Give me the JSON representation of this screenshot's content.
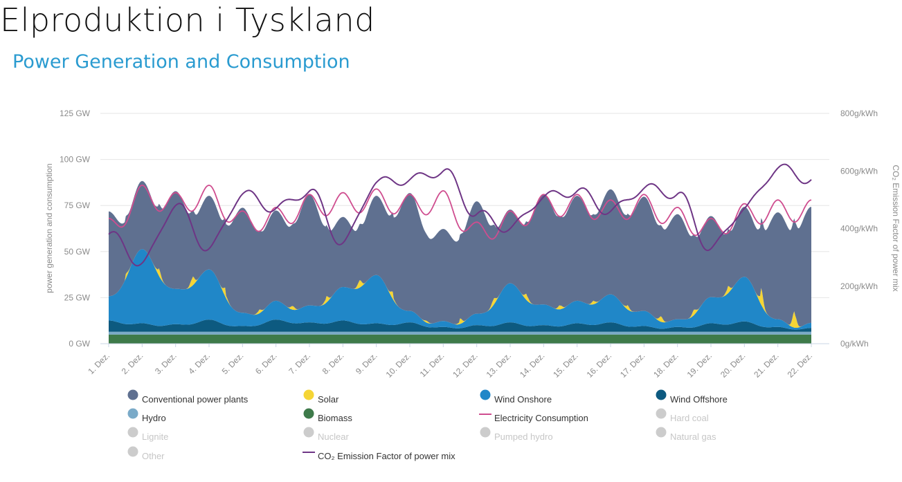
{
  "title": "Elproduktion i Tyskland",
  "subtitle": "Power Generation and Consumption",
  "chart_data": {
    "type": "area",
    "y_left": {
      "label": "power generation and consumption",
      "ticks": [
        "0 GW",
        "25 GW",
        "50 GW",
        "75 GW",
        "100 GW",
        "125 GW"
      ],
      "range": [
        0,
        125
      ],
      "unit": "GW"
    },
    "y_right": {
      "label": "CO₂ Emission Factor of power mix",
      "ticks": [
        "0g/kWh",
        "200g/kWh",
        "400g/kWh",
        "600g/kWh",
        "800g/kWh"
      ],
      "range": [
        0,
        800
      ],
      "unit": "g/kWh"
    },
    "x": {
      "ticks": [
        "1. Dez.",
        "2. Dez.",
        "3. Dez.",
        "4. Dez.",
        "5. Dez.",
        "6. Dez.",
        "7. Dez.",
        "8. Dez.",
        "9. Dez.",
        "10. Dez.",
        "11. Dez.",
        "12. Dez.",
        "13. Dez.",
        "14. Dez.",
        "15. Dez.",
        "16. Dez.",
        "17. Dez.",
        "18. Dez.",
        "19. Dez.",
        "20. Dez.",
        "21. Dez.",
        "22. Dez."
      ]
    },
    "grid": true,
    "legend_position": "bottom",
    "colors": {
      "conventional": "#5f7090",
      "solar": "#f5d535",
      "wind_onshore": "#2087c8",
      "wind_offshore": "#0d5a80",
      "hydro": "#7aaac8",
      "biomass": "#3e7a4a",
      "consumption": "#cf4d8f",
      "co2": "#6e3585",
      "disabled": "#cccccc"
    },
    "series": [
      {
        "name": "Biomass",
        "axis": "left",
        "values": [
          5.0,
          5.0,
          5.0,
          5.0,
          5.0,
          5.0,
          5.0,
          5.0,
          5.0,
          5.0,
          5.0,
          5.0,
          5.0,
          5.0,
          5.0,
          5.0,
          5.0,
          5.0,
          5.0,
          5.0,
          5.0,
          5.0
        ]
      },
      {
        "name": "Hydro",
        "axis": "left",
        "values": [
          1.5,
          1.5,
          1.5,
          1.5,
          1.5,
          1.5,
          1.5,
          1.5,
          1.5,
          1.5,
          1.5,
          1.5,
          1.5,
          1.5,
          1.5,
          1.5,
          1.5,
          1.5,
          1.5,
          1.5,
          1.5,
          1.5
        ]
      },
      {
        "name": "Wind Offshore",
        "axis": "left",
        "values": [
          5.5,
          4.0,
          3.5,
          6.0,
          2.5,
          6.0,
          4.5,
          5.5,
          4.0,
          4.5,
          2.0,
          3.0,
          4.5,
          3.0,
          4.0,
          4.5,
          2.5,
          2.0,
          4.0,
          5.0,
          2.0,
          1.5
        ]
      },
      {
        "name": "Wind Onshore",
        "axis": "left",
        "values": [
          12.0,
          39.0,
          18.0,
          26.0,
          6.0,
          9.0,
          8.0,
          17.0,
          25.0,
          5.0,
          2.0,
          5.0,
          20.0,
          10.0,
          11.0,
          14.0,
          7.0,
          3.0,
          13.0,
          23.0,
          3.0,
          1.5
        ]
      },
      {
        "name": "Solar",
        "axis": "left",
        "values": [
          0.0,
          2.5,
          4.0,
          5.0,
          1.5,
          2.0,
          2.0,
          3.5,
          4.0,
          1.0,
          1.0,
          3.0,
          3.5,
          2.5,
          2.0,
          1.5,
          2.5,
          3.0,
          2.5,
          4.0,
          9.0,
          7.0
        ]
      },
      {
        "name": "Conventional power plants",
        "axis": "left",
        "values": [
          41.0,
          32.0,
          48.0,
          35.0,
          52.0,
          44.0,
          55.0,
          33.0,
          38.0,
          59.0,
          45.0,
          56.0,
          35.0,
          55.0,
          52.0,
          52.0,
          57.0,
          52.0,
          39.0,
          33.0,
          53.0,
          58.0
        ]
      },
      {
        "name": "Electricity Consumption",
        "axis": "left",
        "values": [
          62.0,
          80.0,
          76.0,
          80.0,
          66.0,
          68.0,
          75.0,
          76.0,
          78.0,
          75.0,
          77.0,
          60.0,
          66.0,
          75.0,
          75.0,
          72.0,
          75.0,
          68.0,
          62.0,
          70.0,
          72.0,
          72.0
        ]
      },
      {
        "name": "CO₂ Emission Factor of power mix",
        "axis": "right",
        "values": [
          380,
          280,
          480,
          330,
          520,
          470,
          530,
          350,
          560,
          570,
          600,
          450,
          400,
          510,
          530,
          460,
          540,
          520,
          330,
          470,
          610,
          570
        ]
      }
    ],
    "inactive_series": [
      "Hard coal",
      "Lignite",
      "Nuclear",
      "Pumped hydro",
      "Natural gas",
      "Other"
    ]
  },
  "legend": [
    {
      "label": "Conventional power plants",
      "color": "#5f7090",
      "active": true,
      "marker": "dot"
    },
    {
      "label": "Solar",
      "color": "#f5d535",
      "active": true,
      "marker": "dot"
    },
    {
      "label": "Wind Onshore",
      "color": "#2087c8",
      "active": true,
      "marker": "dot"
    },
    {
      "label": "Wind Offshore",
      "color": "#0d5a80",
      "active": true,
      "marker": "dot"
    },
    {
      "label": "Hydro",
      "color": "#7aaac8",
      "active": true,
      "marker": "dot"
    },
    {
      "label": "Biomass",
      "color": "#3e7a4a",
      "active": true,
      "marker": "dot"
    },
    {
      "label": "Electricity Consumption",
      "color": "#cf4d8f",
      "active": true,
      "marker": "line"
    },
    {
      "label": "Hard coal",
      "color": "#cccccc",
      "active": false,
      "marker": "dot"
    },
    {
      "label": "Lignite",
      "color": "#cccccc",
      "active": false,
      "marker": "dot"
    },
    {
      "label": "Nuclear",
      "color": "#cccccc",
      "active": false,
      "marker": "dot"
    },
    {
      "label": "Pumped hydro",
      "color": "#cccccc",
      "active": false,
      "marker": "dot"
    },
    {
      "label": "Natural gas",
      "color": "#cccccc",
      "active": false,
      "marker": "dot"
    },
    {
      "label": "Other",
      "color": "#cccccc",
      "active": false,
      "marker": "dot"
    },
    {
      "label": "CO₂ Emission Factor of power mix",
      "color": "#6e3585",
      "active": true,
      "marker": "line"
    }
  ]
}
